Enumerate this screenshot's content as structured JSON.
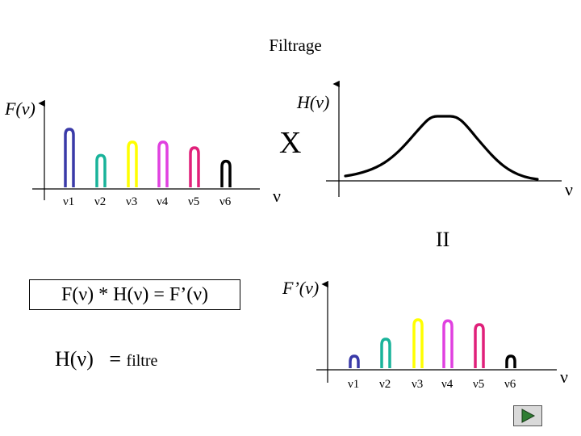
{
  "title": "Filtrage",
  "input_panel": {
    "ylabel": "F(ν)",
    "xlabel": "ν",
    "peaks": [
      {
        "label": "ν1",
        "color": "#3a3aa8",
        "height": 1.0
      },
      {
        "label": "ν2",
        "color": "#19b39a",
        "height": 0.55
      },
      {
        "label": "ν3",
        "color": "#ffff00",
        "height": 0.78
      },
      {
        "label": "ν4",
        "color": "#e040e0",
        "height": 0.78
      },
      {
        "label": "ν5",
        "color": "#e0207a",
        "height": 0.68
      },
      {
        "label": "ν6",
        "color": "#000000",
        "height": 0.45
      }
    ]
  },
  "operator_times": "X",
  "filter_panel": {
    "ylabel": "H(ν)",
    "xlabel": "ν"
  },
  "operator_equals": "II",
  "output_panel": {
    "ylabel": "F’(ν)",
    "xlabel": "ν",
    "peaks": [
      {
        "label": "ν1",
        "color": "#3a3aa8",
        "height": 0.25
      },
      {
        "label": "ν2",
        "color": "#19b39a",
        "height": 0.6
      },
      {
        "label": "ν3",
        "color": "#ffff00",
        "height": 1.0
      },
      {
        "label": "ν4",
        "color": "#e040e0",
        "height": 0.98
      },
      {
        "label": "ν5",
        "color": "#e0207a",
        "height": 0.9
      },
      {
        "label": "ν6",
        "color": "#000000",
        "height": 0.25
      }
    ]
  },
  "equation": "F(ν) * H(ν) = F’(ν)",
  "filter_definition": {
    "lhs": "H(ν)",
    "eq": "=",
    "rhs": "filtre"
  },
  "controls": {
    "play_icon": "play-icon"
  }
}
